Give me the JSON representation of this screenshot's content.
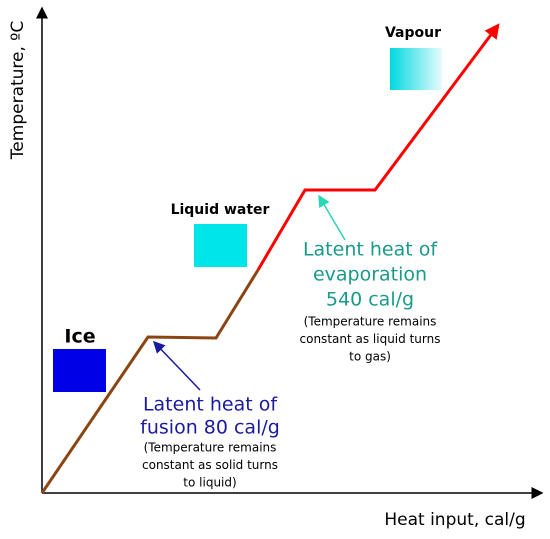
{
  "axes": {
    "y_label": "Temperature, ºC",
    "x_label": "Heat input, cal/g"
  },
  "phases": {
    "ice": "Ice",
    "liquid": "Liquid water",
    "vapour": "Vapour"
  },
  "fusion": {
    "title": [
      "Latent heat of",
      "fusion 80 cal/g"
    ],
    "note": [
      "(Temperature remains",
      "constant as solid turns",
      "to liquid)"
    ]
  },
  "evaporation": {
    "title": [
      "Latent heat of",
      "evaporation",
      "540 cal/g"
    ],
    "note": [
      "(Temperature remains",
      "constant as liquid turns",
      "to gas)"
    ]
  }
}
